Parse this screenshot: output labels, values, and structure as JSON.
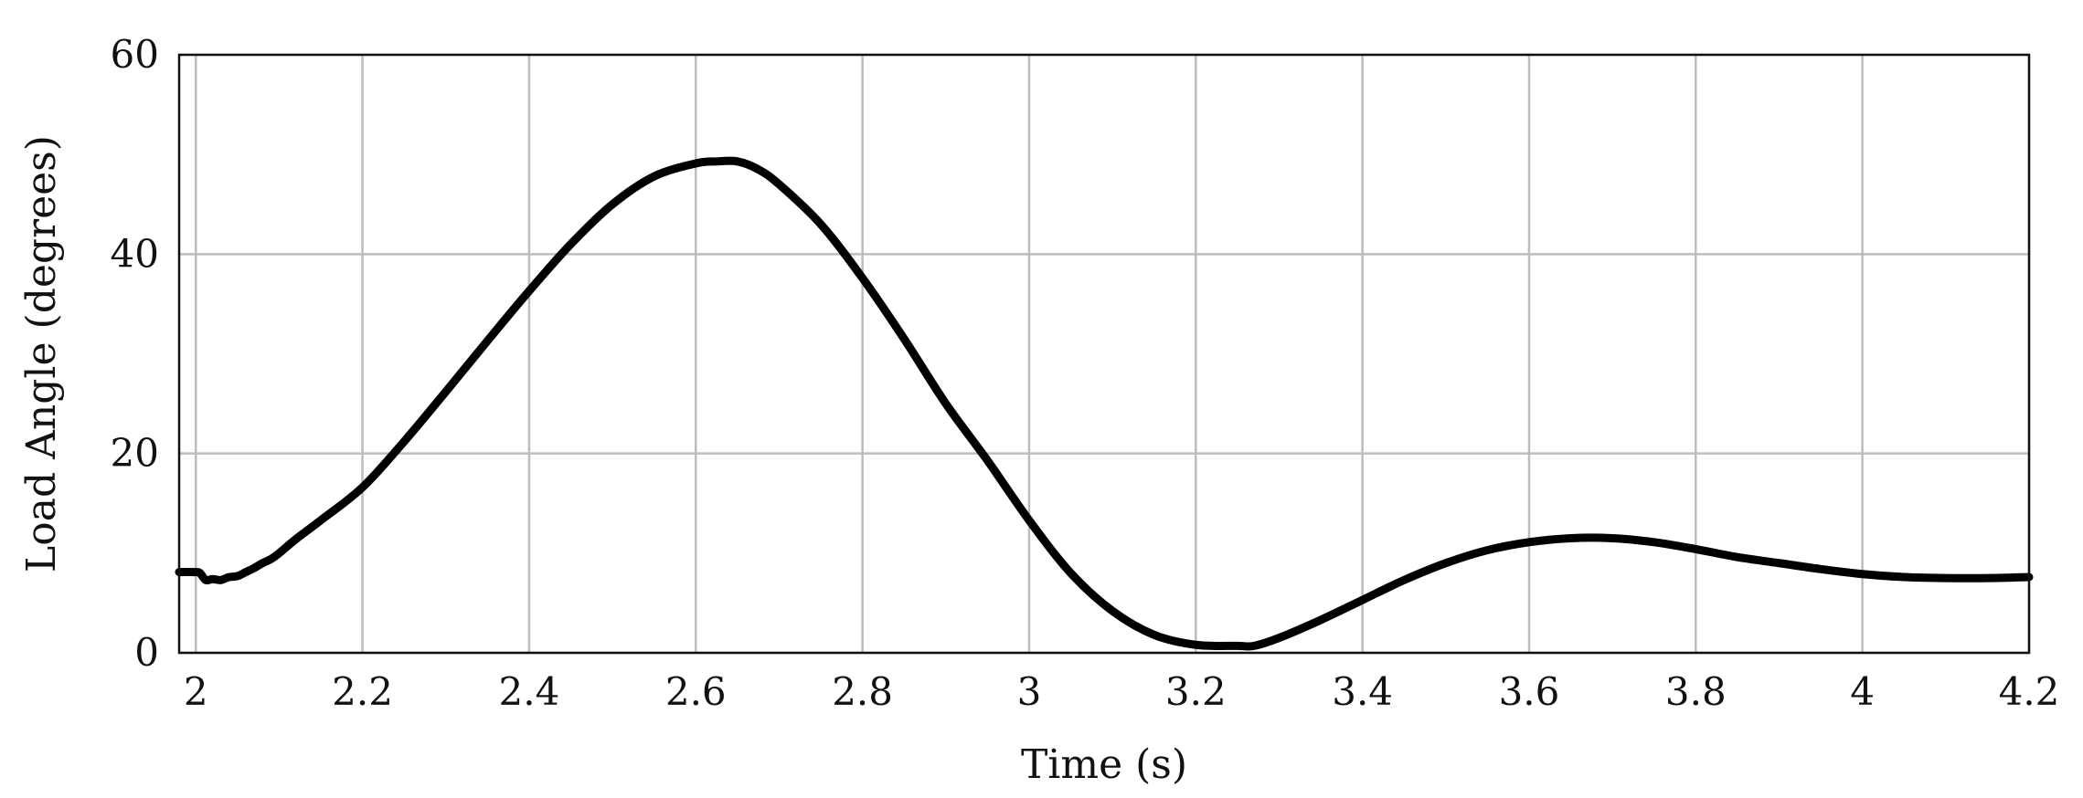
{
  "chart_data": {
    "type": "line",
    "title": "",
    "xlabel": "Time (s)",
    "ylabel": "Load Angle (degrees)",
    "xlim": [
      1.98,
      4.2
    ],
    "ylim": [
      0,
      60
    ],
    "x_ticks": [
      2,
      2.2,
      2.4,
      2.6,
      2.8,
      3,
      3.2,
      3.4,
      3.6,
      3.8,
      4,
      4.2
    ],
    "x_tick_labels": [
      "2",
      "2.2",
      "2.4",
      "2.6",
      "2.8",
      "3",
      "3.2",
      "3.4",
      "3.6",
      "3.8",
      "4",
      "4.2"
    ],
    "y_ticks": [
      0,
      20,
      40,
      60
    ],
    "y_tick_labels": [
      "0",
      "20",
      "40",
      "60"
    ],
    "grid": true,
    "legend": "none",
    "series_color": "#000000",
    "series": [
      {
        "x": [
          1.98,
          2.0,
          2.005,
          2.012,
          2.02,
          2.03,
          2.04,
          2.05,
          2.06,
          2.07,
          2.08,
          2.09,
          2.1,
          2.12,
          2.15,
          2.2,
          2.25,
          2.3,
          2.35,
          2.4,
          2.45,
          2.5,
          2.55,
          2.6,
          2.625,
          2.65,
          2.675,
          2.7,
          2.75,
          2.8,
          2.85,
          2.9,
          2.95,
          3.0,
          3.05,
          3.1,
          3.15,
          3.2,
          3.25,
          3.27,
          3.3,
          3.35,
          3.4,
          3.45,
          3.5,
          3.55,
          3.6,
          3.65,
          3.7,
          3.75,
          3.8,
          3.85,
          3.9,
          3.95,
          4.0,
          4.05,
          4.1,
          4.15,
          4.2
        ],
        "y": [
          8.1,
          8.1,
          8.0,
          7.3,
          7.4,
          7.3,
          7.6,
          7.7,
          8.1,
          8.5,
          9.0,
          9.4,
          10.0,
          11.4,
          13.3,
          16.6,
          21.2,
          26.2,
          31.3,
          36.3,
          41.0,
          45.0,
          47.8,
          49.1,
          49.3,
          49.3,
          48.5,
          47.0,
          43.0,
          37.6,
          31.5,
          25.0,
          19.3,
          13.3,
          8.0,
          4.2,
          1.8,
          0.8,
          0.7,
          0.7,
          1.5,
          3.3,
          5.3,
          7.3,
          9.0,
          10.3,
          11.1,
          11.5,
          11.5,
          11.1,
          10.4,
          9.6,
          9.0,
          8.4,
          7.9,
          7.6,
          7.5,
          7.5,
          7.6
        ]
      }
    ]
  }
}
